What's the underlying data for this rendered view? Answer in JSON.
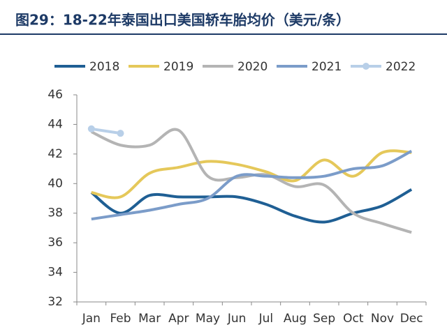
{
  "chart_data": {
    "type": "line",
    "title": "图29：18-22年泰国出口美国轿车胎均价（美元/条）",
    "categories": [
      "Jan",
      "Feb",
      "Mar",
      "Apr",
      "May",
      "Jun",
      "Jul",
      "Aug",
      "Sep",
      "Oct",
      "Nov",
      "Dec"
    ],
    "series": [
      {
        "name": "2018",
        "color": "#1f5f94",
        "values": [
          39.4,
          38.0,
          39.2,
          39.1,
          39.1,
          39.1,
          38.6,
          37.8,
          37.4,
          38.0,
          38.5,
          39.6
        ]
      },
      {
        "name": "2019",
        "color": "#e5c85a",
        "values": [
          39.4,
          39.1,
          40.7,
          41.1,
          41.5,
          41.3,
          40.8,
          40.2,
          41.6,
          40.5,
          42.1,
          42.1
        ]
      },
      {
        "name": "2020",
        "color": "#b4b4b4",
        "values": [
          43.5,
          42.6,
          42.6,
          43.6,
          40.5,
          40.4,
          40.6,
          39.8,
          39.9,
          38.0,
          37.3,
          36.7
        ]
      },
      {
        "name": "2021",
        "color": "#7b9cc9",
        "values": [
          37.6,
          37.9,
          38.2,
          38.6,
          39.0,
          40.5,
          40.5,
          40.4,
          40.5,
          41.0,
          41.2,
          42.2
        ]
      },
      {
        "name": "2022",
        "color": "#b8cfe8",
        "markers": true,
        "values": [
          43.7,
          43.4,
          null,
          null,
          null,
          null,
          null,
          null,
          null,
          null,
          null,
          null
        ]
      }
    ],
    "ylim": [
      32,
      46
    ],
    "yticks": [
      32,
      34,
      36,
      38,
      40,
      42,
      44,
      46
    ]
  }
}
